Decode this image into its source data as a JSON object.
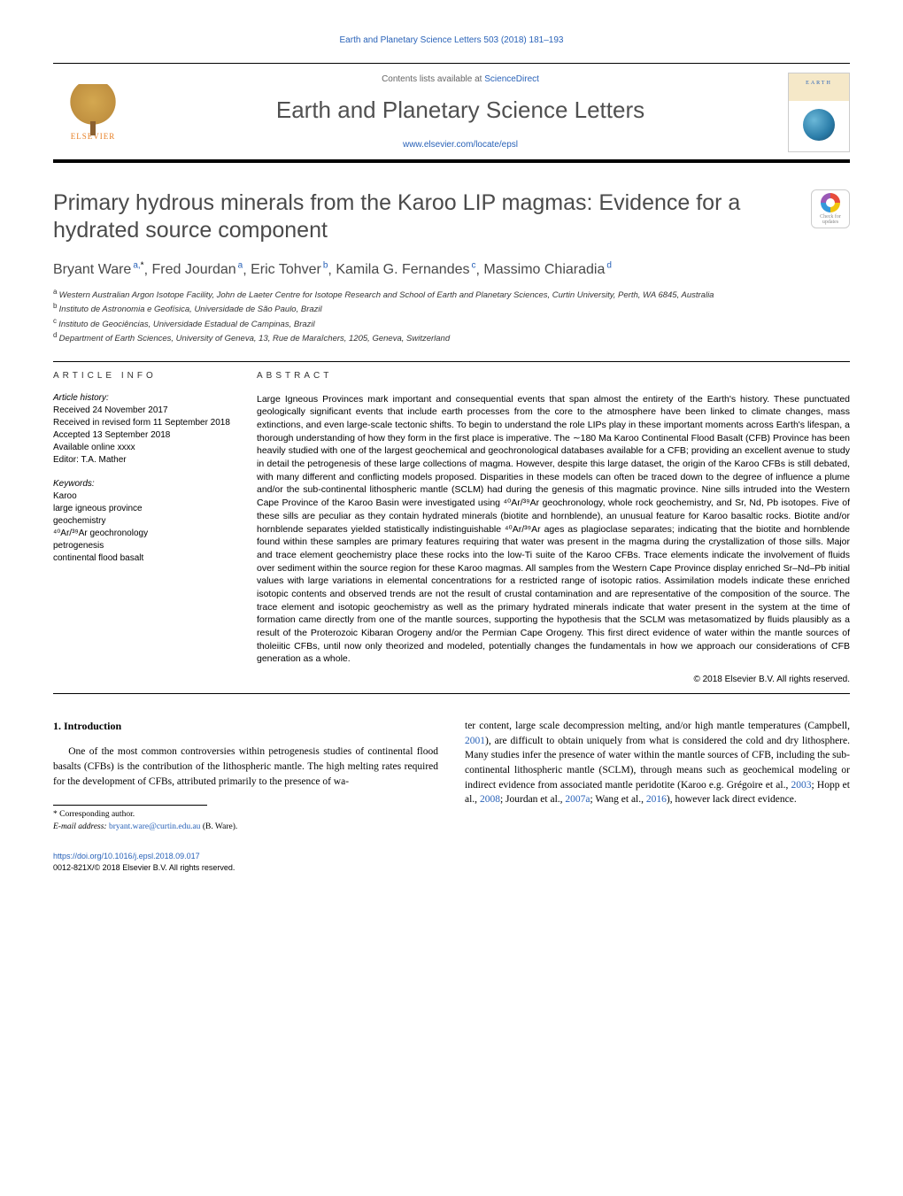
{
  "running_head": "Earth and Planetary Science Letters 503 (2018) 181–193",
  "header": {
    "contents_prefix": "Contents lists available at ",
    "contents_link": "ScienceDirect",
    "journal_name": "Earth and Planetary Science Letters",
    "journal_link": "www.elsevier.com/locate/epsl",
    "publisher_name": "ELSEVIER"
  },
  "crossmark": {
    "line1": "Check for",
    "line2": "updates"
  },
  "title": "Primary hydrous minerals from the Karoo LIP magmas: Evidence for a hydrated source component",
  "authors_html": "Bryant Ware|a,*|, Fred Jourdan|a|, Eric Tohver|b|, Kamila G. Fernandes|c|, Massimo Chiaradia|d|",
  "authors": [
    {
      "name": "Bryant Ware",
      "aff": "a",
      "corr": true
    },
    {
      "name": "Fred Jourdan",
      "aff": "a",
      "corr": false
    },
    {
      "name": "Eric Tohver",
      "aff": "b",
      "corr": false
    },
    {
      "name": "Kamila G. Fernandes",
      "aff": "c",
      "corr": false
    },
    {
      "name": "Massimo Chiaradia",
      "aff": "d",
      "corr": false
    }
  ],
  "affiliations": [
    {
      "key": "a",
      "text": "Western Australian Argon Isotope Facility, John de Laeter Centre for Isotope Research and School of Earth and Planetary Sciences, Curtin University, Perth, WA 6845, Australia"
    },
    {
      "key": "b",
      "text": "Instituto de Astronomia e Geofísica, Universidade de São Paulo, Brazil"
    },
    {
      "key": "c",
      "text": "Instituto de Geociências, Universidade Estadual de Campinas, Brazil"
    },
    {
      "key": "d",
      "text": "Department of Earth Sciences, University of Geneva, 13, Rue de Maraîchers, 1205, Geneva, Switzerland"
    }
  ],
  "article_info": {
    "heading": "article info",
    "history_label": "Article history:",
    "history": [
      "Received 24 November 2017",
      "Received in revised form 11 September 2018",
      "Accepted 13 September 2018",
      "Available online xxxx",
      "Editor: T.A. Mather"
    ],
    "keywords_label": "Keywords:",
    "keywords": [
      "Karoo",
      "large igneous province",
      "geochemistry",
      "⁴⁰Ar/³⁹Ar geochronology",
      "petrogenesis",
      "continental flood basalt"
    ]
  },
  "abstract": {
    "heading": "abstract",
    "text": "Large Igneous Provinces mark important and consequential events that span almost the entirety of the Earth's history. These punctuated geologically significant events that include earth processes from the core to the atmosphere have been linked to climate changes, mass extinctions, and even large-scale tectonic shifts. To begin to understand the role LIPs play in these important moments across Earth's lifespan, a thorough understanding of how they form in the first place is imperative. The ∼180 Ma Karoo Continental Flood Basalt (CFB) Province has been heavily studied with one of the largest geochemical and geochronological databases available for a CFB; providing an excellent avenue to study in detail the petrogenesis of these large collections of magma. However, despite this large dataset, the origin of the Karoo CFBs is still debated, with many different and conflicting models proposed. Disparities in these models can often be traced down to the degree of influence a plume and/or the sub-continental lithospheric mantle (SCLM) had during the genesis of this magmatic province. Nine sills intruded into the Western Cape Province of the Karoo Basin were investigated using ⁴⁰Ar/³⁹Ar geochronology, whole rock geochemistry, and Sr, Nd, Pb isotopes. Five of these sills are peculiar as they contain hydrated minerals (biotite and hornblende), an unusual feature for Karoo basaltic rocks. Biotite and/or hornblende separates yielded statistically indistinguishable ⁴⁰Ar/³⁹Ar ages as plagioclase separates; indicating that the biotite and hornblende found within these samples are primary features requiring that water was present in the magma during the crystallization of those sills. Major and trace element geochemistry place these rocks into the low-Ti suite of the Karoo CFBs. Trace elements indicate the involvement of fluids over sediment within the source region for these Karoo magmas. All samples from the Western Cape Province display enriched Sr–Nd–Pb initial values with large variations in elemental concentrations for a restricted range of isotopic ratios. Assimilation models indicate these enriched isotopic contents and observed trends are not the result of crustal contamination and are representative of the composition of the source. The trace element and isotopic geochemistry as well as the primary hydrated minerals indicate that water present in the system at the time of formation came directly from one of the mantle sources, supporting the hypothesis that the SCLM was metasomatized by fluids plausibly as a result of the Proterozoic Kibaran Orogeny and/or the Permian Cape Orogeny. This first direct evidence of water within the mantle sources of tholeiitic CFBs, until now only theorized and modeled, potentially changes the fundamentals in how we approach our considerations of CFB generation as a whole.",
    "copyright": "© 2018 Elsevier B.V. All rights reserved."
  },
  "body": {
    "section_number": "1.",
    "section_title": "Introduction",
    "col1": "One of the most common controversies within petrogenesis studies of continental flood basalts (CFBs) is the contribution of the lithospheric mantle. The high melting rates required for the development of CFBs, attributed primarily to the presence of wa-",
    "col2_part1": "ter content, large scale decompression melting, and/or high mantle temperatures (Campbell, ",
    "col2_cite1": "2001",
    "col2_part2": "), are difficult to obtain uniquely from what is considered the cold and dry lithosphere. Many studies infer the presence of water within the mantle sources of CFB, including the sub-continental lithospheric mantle (SCLM), through means such as geochemical modeling or indirect evidence from associated mantle peridotite (Karoo e.g. Grégoire et al., ",
    "col2_cite2": "2003",
    "col2_part3": "; Hopp et al., ",
    "col2_cite3": "2008",
    "col2_part4": "; Jourdan et al., ",
    "col2_cite4": "2007a",
    "col2_part5": "; Wang et al., ",
    "col2_cite5": "2016",
    "col2_part6": "), however lack direct evidence."
  },
  "footnote": {
    "corr_label": "* Corresponding author.",
    "email_label": "E-mail address:",
    "email": "bryant.ware@curtin.edu.au",
    "email_person": "(B. Ware)."
  },
  "footer": {
    "doi": "https://doi.org/10.1016/j.epsl.2018.09.017",
    "issn_line": "0012-821X/© 2018 Elsevier B.V. All rights reserved."
  },
  "colors": {
    "link": "#2962b8",
    "text_gray": "#4a4a4a",
    "elsevier_orange": "#e67e22"
  }
}
